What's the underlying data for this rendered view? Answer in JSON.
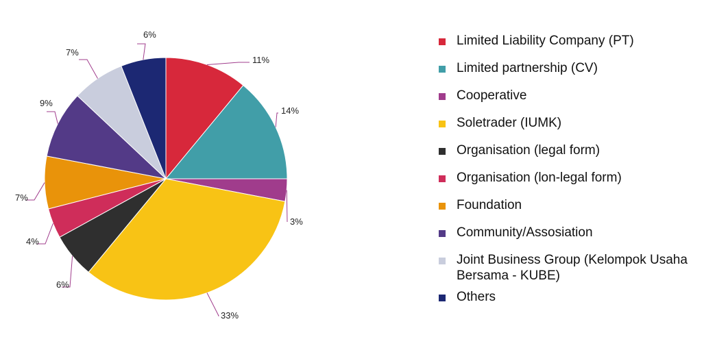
{
  "chart_data": {
    "type": "pie",
    "title": "",
    "legend_position": "right",
    "slices": [
      {
        "label": "Limited Liability Company (PT)",
        "value": 11,
        "display": "11%",
        "color": "#d7283b"
      },
      {
        "label": "Limited partnership (CV)",
        "value": 14,
        "display": "14%",
        "color": "#419ea8"
      },
      {
        "label": "Cooperative",
        "value": 3,
        "display": "3%",
        "color": "#a03c8c"
      },
      {
        "label": "Soletrader (IUMK)",
        "value": 33,
        "display": "33%",
        "color": "#f8c315"
      },
      {
        "label": "Organisation (legal form)",
        "value": 6,
        "display": "6%",
        "color": "#2f2f2f"
      },
      {
        "label": "Organisation (lon-legal form)",
        "value": 4,
        "display": "4%",
        "color": "#cf2d5a"
      },
      {
        "label": "Foundation",
        "value": 7,
        "display": "7%",
        "color": "#e9930a"
      },
      {
        "label": "Community/Assosiation",
        "value": 9,
        "display": "9%",
        "color": "#533a87"
      },
      {
        "label": "Joint Business Group (Kelompok Usaha Bersama - KUBE)",
        "value": 7,
        "display": "7%",
        "color": "#c9cddd"
      },
      {
        "label": "Others",
        "value": 6,
        "display": "6%",
        "color": "#1c2873"
      }
    ]
  }
}
